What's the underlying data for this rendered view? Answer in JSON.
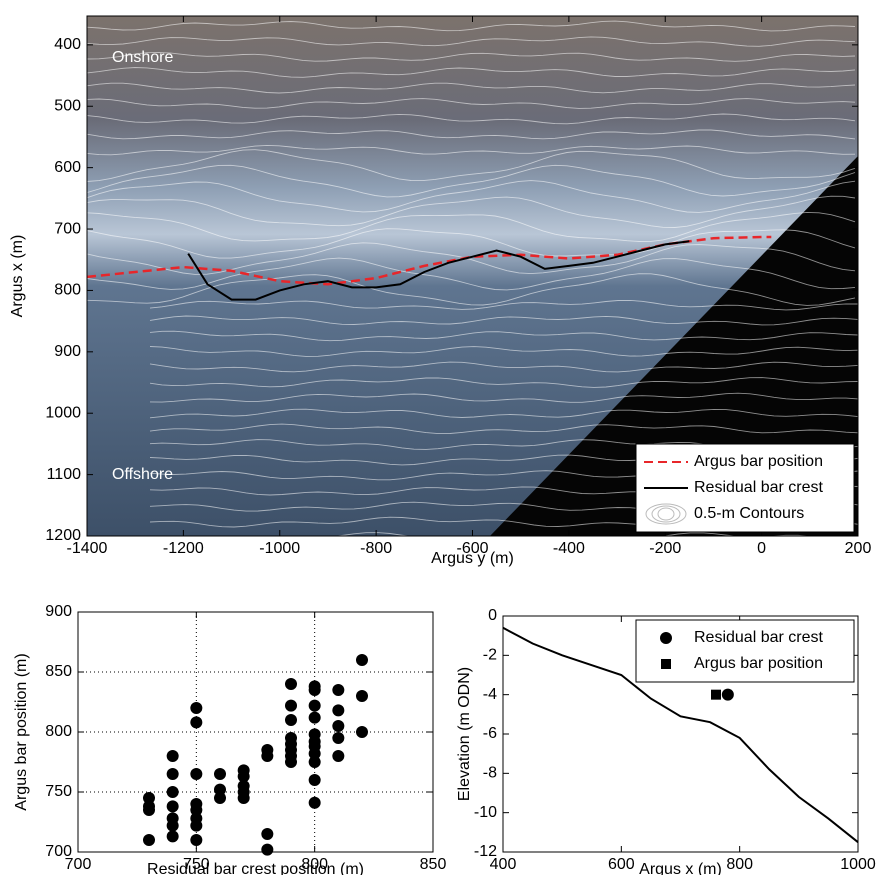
{
  "chart_data": [
    {
      "type": "line",
      "xlabel": "Argus y (m)",
      "ylabel": "Argus x (m)",
      "xlim": [
        -1400,
        200
      ],
      "ylim": [
        353,
        1200
      ],
      "y_reversed": true,
      "xticks": [
        -1400,
        -1200,
        -1000,
        -800,
        -600,
        -400,
        -200,
        0,
        200
      ],
      "yticks": [
        400,
        500,
        600,
        700,
        800,
        900,
        1000,
        1100,
        1200
      ],
      "grid": false,
      "legend": "lower right",
      "annotations": [
        "Onshore",
        "Offshore"
      ],
      "contour_label": "0.5-m Contours",
      "series": [
        {
          "name": "Argus bar position",
          "color": "#e8262a",
          "dash": true,
          "x": [
            -1400,
            -1300,
            -1200,
            -1100,
            -1000,
            -900,
            -800,
            -700,
            -600,
            -500,
            -400,
            -300,
            -200,
            -100,
            0,
            20
          ],
          "values": [
            778,
            770,
            762,
            768,
            785,
            790,
            780,
            760,
            745,
            742,
            748,
            742,
            725,
            715,
            713,
            713
          ]
        },
        {
          "name": "Residual bar crest",
          "color": "#000000",
          "dash": false,
          "x": [
            -1190,
            -1150,
            -1100,
            -1050,
            -1000,
            -950,
            -900,
            -850,
            -800,
            -750,
            -700,
            -650,
            -600,
            -550,
            -500,
            -450,
            -400,
            -350,
            -300,
            -250,
            -200,
            -150
          ],
          "values": [
            740,
            790,
            815,
            815,
            800,
            790,
            785,
            795,
            795,
            790,
            770,
            755,
            745,
            735,
            745,
            765,
            760,
            755,
            745,
            735,
            725,
            720
          ]
        }
      ]
    },
    {
      "type": "scatter",
      "xlabel": "Residual bar crest position (m)",
      "ylabel": "Argus bar position (m)",
      "xlim": [
        700,
        850
      ],
      "ylim": [
        700,
        900
      ],
      "xticks": [
        700,
        750,
        800,
        850
      ],
      "yticks": [
        700,
        750,
        800,
        850,
        900
      ],
      "grid": true,
      "color": "#000000",
      "x": [
        730,
        730,
        730,
        730,
        740,
        740,
        740,
        740,
        740,
        740,
        740,
        750,
        750,
        750,
        750,
        750,
        750,
        750,
        750,
        760,
        760,
        760,
        770,
        770,
        770,
        770,
        770,
        780,
        780,
        780,
        780,
        790,
        790,
        790,
        790,
        790,
        790,
        790,
        790,
        800,
        800,
        800,
        800,
        800,
        800,
        800,
        800,
        800,
        800,
        800,
        810,
        810,
        810,
        810,
        810,
        820,
        820,
        820
      ],
      "values": [
        745,
        738,
        735,
        710,
        780,
        765,
        750,
        738,
        728,
        722,
        713,
        820,
        808,
        765,
        740,
        735,
        728,
        722,
        710,
        765,
        752,
        745,
        768,
        763,
        755,
        750,
        745,
        785,
        780,
        715,
        702,
        840,
        822,
        810,
        795,
        790,
        785,
        780,
        775,
        838,
        835,
        822,
        812,
        798,
        792,
        788,
        782,
        775,
        760,
        741,
        835,
        818,
        805,
        795,
        780,
        860,
        830,
        800
      ]
    },
    {
      "type": "line",
      "xlabel": "Argus x (m)",
      "ylabel": "Elevation (m ODN)",
      "xlim": [
        400,
        1000
      ],
      "ylim": [
        -12,
        0
      ],
      "xticks": [
        400,
        600,
        800,
        1000
      ],
      "yticks": [
        0,
        -2,
        -4,
        -6,
        -8,
        -10,
        -12
      ],
      "grid": false,
      "legend": "upper right",
      "series": [
        {
          "color": "#000000",
          "x": [
            400,
            450,
            500,
            550,
            600,
            650,
            700,
            750,
            800,
            850,
            900,
            950,
            1000
          ],
          "values": [
            -0.6,
            -1.4,
            -2.0,
            -2.5,
            -3.0,
            -4.2,
            -5.1,
            -5.4,
            -6.2,
            -7.8,
            -9.2,
            -10.3,
            -11.5
          ]
        },
        {
          "name": "Residual bar crest",
          "color": "#000000",
          "marker": "circle",
          "x": [
            780
          ],
          "values": [
            -4
          ]
        },
        {
          "name": "Argus bar position",
          "color": "#000000",
          "marker": "square",
          "x": [
            760
          ],
          "values": [
            -4
          ]
        }
      ]
    }
  ]
}
